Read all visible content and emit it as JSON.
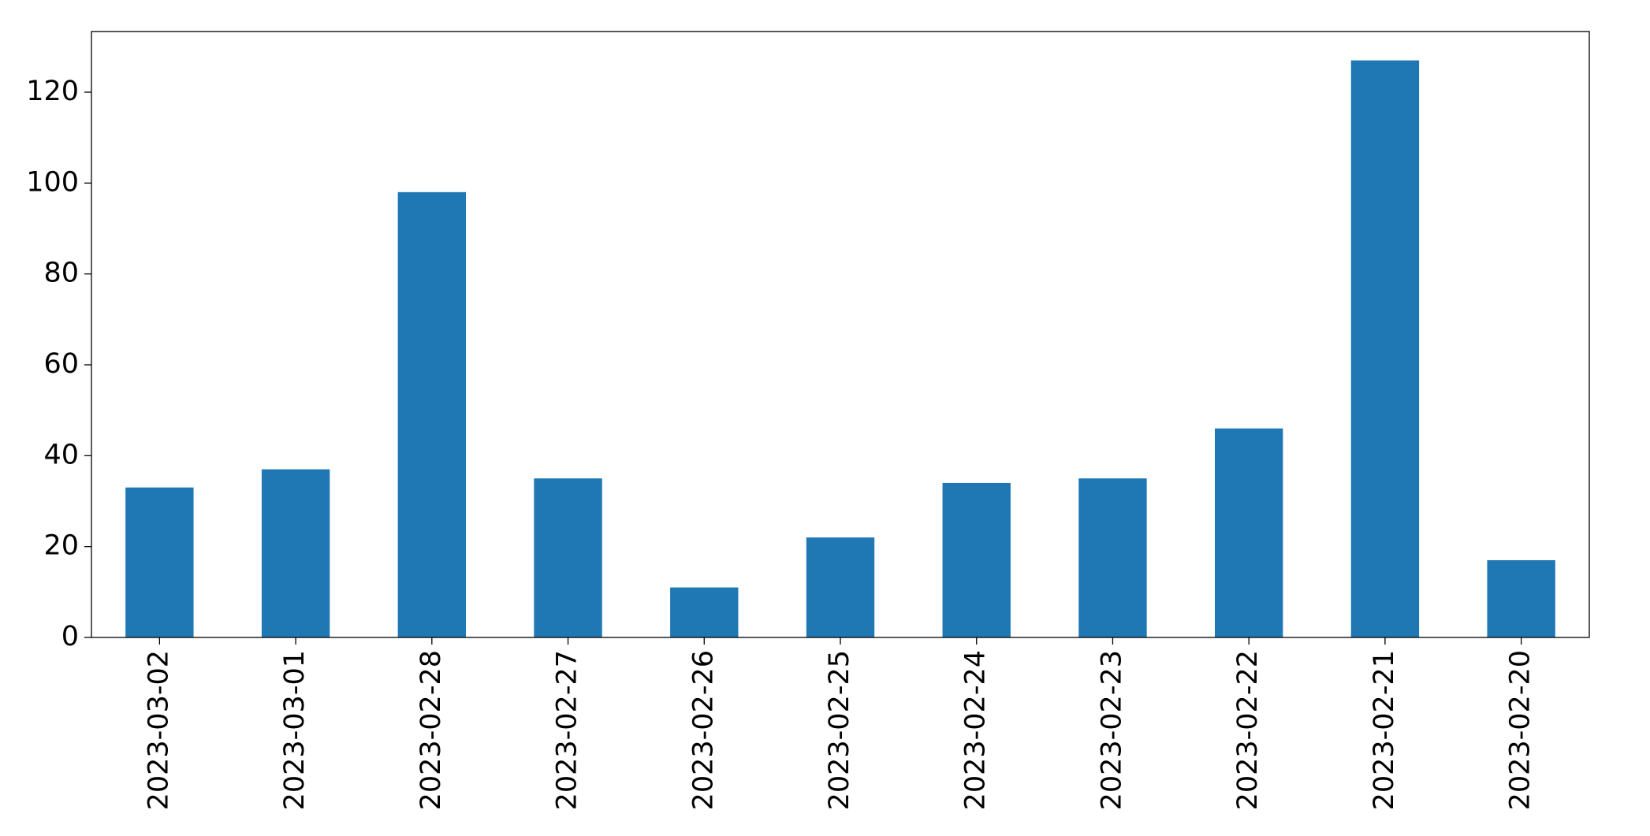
{
  "chart_data": {
    "type": "bar",
    "categories": [
      "2023-03-02",
      "2023-03-01",
      "2023-02-28",
      "2023-02-27",
      "2023-02-26",
      "2023-02-25",
      "2023-02-24",
      "2023-02-23",
      "2023-02-22",
      "2023-02-21",
      "2023-02-20"
    ],
    "values": [
      33,
      37,
      98,
      35,
      11,
      22,
      34,
      35,
      46,
      127,
      17
    ],
    "color": "#1f77b4",
    "ylim": [
      0,
      133.35
    ],
    "yticks": [
      0,
      20,
      40,
      60,
      80,
      100,
      120
    ],
    "grid": false
  }
}
